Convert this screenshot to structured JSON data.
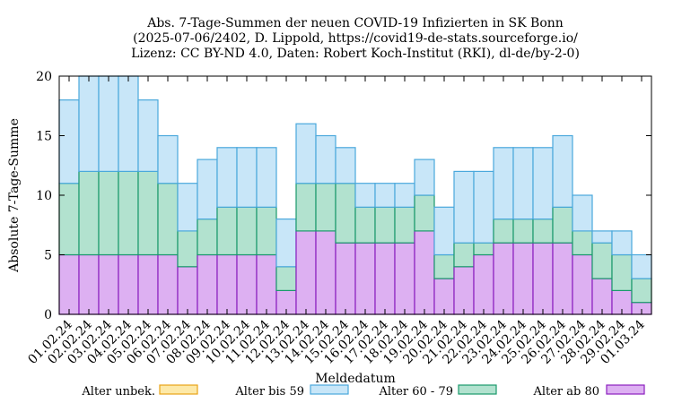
{
  "chart_data": {
    "type": "bar",
    "stacked": true,
    "title_lines": [
      "Abs. 7-Tage-Summen der neuen COVID-19 Infizierten in SK Bonn",
      "(2025-07-06/2402, D. Lippold, https://covid19-de-stats.sourceforge.io/",
      "Lizenz: CC BY-ND 4.0, Daten: Robert Koch-Institut (RKI), dl-de/by-2-0)"
    ],
    "xlabel": "Meldedatum",
    "ylabel": "Absolute 7-Tage-Summe",
    "ylim": [
      0,
      20
    ],
    "yticks": [
      0,
      5,
      10,
      15,
      20
    ],
    "categories": [
      "01.02.24",
      "02.02.24",
      "03.02.24",
      "04.02.24",
      "05.02.24",
      "06.02.24",
      "07.02.24",
      "08.02.24",
      "09.02.24",
      "10.02.24",
      "11.02.24",
      "12.02.24",
      "13.02.24",
      "14.02.24",
      "15.02.24",
      "16.02.24",
      "17.02.24",
      "18.02.24",
      "19.02.24",
      "20.02.24",
      "21.02.24",
      "22.02.24",
      "23.02.24",
      "24.02.24",
      "25.02.24",
      "26.02.24",
      "27.02.24",
      "28.02.24",
      "29.02.24",
      "01.03.24"
    ],
    "series": [
      {
        "name": "Alter unbek.",
        "color": "#fde9a8",
        "stroke": "#e8a317",
        "values": [
          0,
          0,
          0,
          0,
          0,
          0,
          0,
          0,
          0,
          0,
          0,
          0,
          0,
          0,
          0,
          0,
          0,
          0,
          0,
          0,
          0,
          0,
          0,
          0,
          0,
          0,
          0,
          0,
          0,
          0
        ]
      },
      {
        "name": "Alter ab 80",
        "color": "#ddb0f2",
        "stroke": "#8b1fbf",
        "values": [
          5,
          5,
          5,
          5,
          5,
          5,
          4,
          5,
          5,
          5,
          5,
          2,
          7,
          7,
          6,
          6,
          6,
          6,
          7,
          3,
          4,
          5,
          6,
          6,
          6,
          6,
          5,
          3,
          2,
          1
        ]
      },
      {
        "name": "Alter 60 - 79",
        "color": "#b2e2cf",
        "stroke": "#1a9a6c",
        "values": [
          6,
          7,
          7,
          7,
          7,
          6,
          3,
          3,
          4,
          4,
          4,
          2,
          4,
          4,
          5,
          3,
          3,
          3,
          3,
          2,
          2,
          1,
          2,
          2,
          2,
          3,
          2,
          3,
          3,
          2
        ]
      },
      {
        "name": "Alter bis 59",
        "color": "#c8e6f8",
        "stroke": "#4aa8dc",
        "values": [
          7,
          8,
          8,
          8,
          6,
          4,
          4,
          5,
          5,
          5,
          5,
          4,
          5,
          4,
          3,
          2,
          2,
          2,
          3,
          4,
          6,
          6,
          6,
          6,
          6,
          6,
          3,
          1,
          2,
          2
        ]
      }
    ],
    "legend": {
      "placement": "bottom",
      "order": [
        "Alter unbek.",
        "Alter bis 59",
        "Alter 60 - 79",
        "Alter ab 80"
      ]
    },
    "grid": false
  }
}
